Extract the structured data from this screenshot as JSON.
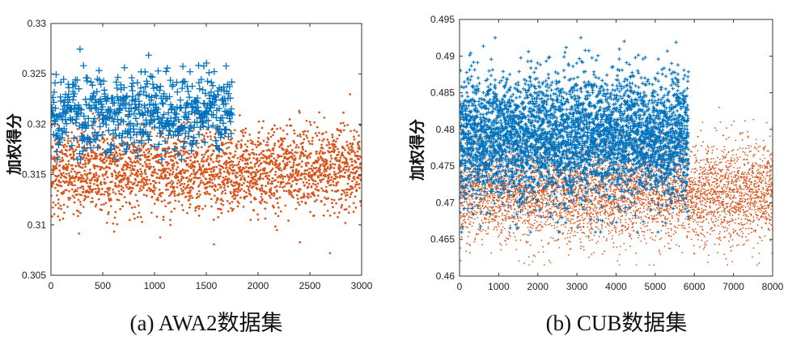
{
  "chart_data": [
    {
      "type": "scatter",
      "caption": "(a) AWA2数据集",
      "ylabel": "加权得分",
      "xlim": [
        0,
        3000
      ],
      "ylim": [
        0.305,
        0.33
      ],
      "xticks": [
        0,
        500,
        1000,
        1500,
        2000,
        2500,
        3000
      ],
      "yticks": [
        0.305,
        0.31,
        0.315,
        0.32,
        0.325,
        0.33
      ],
      "grid": false,
      "series": [
        {
          "color": "#0072BD",
          "marker": "plus",
          "x_range": [
            0,
            1750
          ],
          "count": 600,
          "y_center": 0.3212,
          "y_spread": 0.0019,
          "y_range": [
            0.3165,
            0.3278
          ]
        },
        {
          "color": "#D95319",
          "marker": "dot",
          "x_range": [
            0,
            3000
          ],
          "count": 2600,
          "y_center": 0.3155,
          "y_spread": 0.0021,
          "y_range": [
            0.3072,
            0.3236
          ]
        }
      ]
    },
    {
      "type": "scatter",
      "caption": "(b) CUB数据集",
      "ylabel": "加权得分",
      "xlim": [
        0,
        8000
      ],
      "ylim": [
        0.46,
        0.495
      ],
      "xticks": [
        0,
        1000,
        2000,
        3000,
        4000,
        5000,
        6000,
        7000,
        8000
      ],
      "yticks": [
        0.46,
        0.465,
        0.47,
        0.475,
        0.48,
        0.485,
        0.49,
        0.495
      ],
      "grid": false,
      "series": [
        {
          "color": "#0072BD",
          "marker": "plus",
          "x_range": [
            0,
            5850
          ],
          "count": 4200,
          "y_center": 0.479,
          "y_spread": 0.0042,
          "y_range": [
            0.466,
            0.4925
          ]
        },
        {
          "color": "#D95319",
          "marker": "dot",
          "x_range": [
            0,
            8000
          ],
          "count": 5200,
          "y_center": 0.4715,
          "y_spread": 0.0033,
          "y_range": [
            0.4615,
            0.483
          ]
        }
      ]
    }
  ]
}
